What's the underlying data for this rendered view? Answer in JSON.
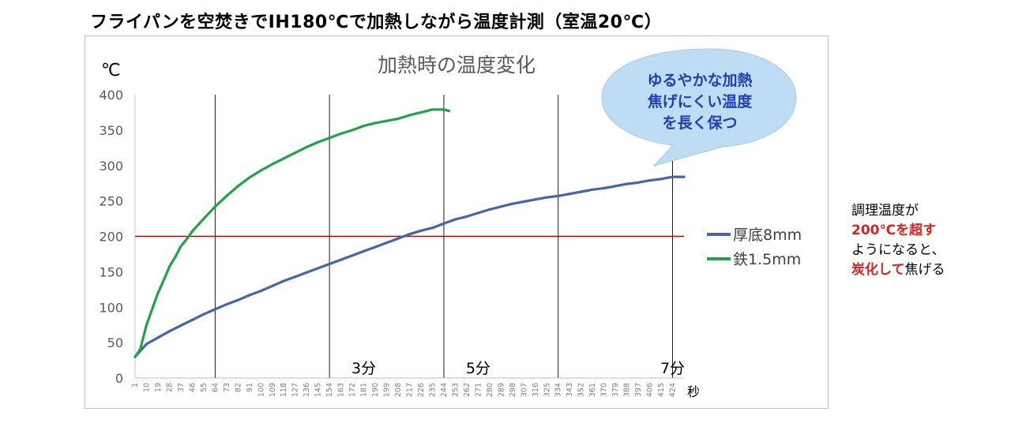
{
  "heading": "フライパンを空焚きでIH180℃で加熱しながら温度計測（室温20℃）",
  "chart_data": {
    "type": "line",
    "title": "加熱時の温度変化",
    "ylabel": "℃",
    "xlabel": "秒",
    "ylim": [
      0,
      400
    ],
    "yticks": [
      0,
      50,
      100,
      150,
      200,
      250,
      300,
      350,
      400
    ],
    "xlim": [
      1,
      433
    ],
    "xticks": [
      1,
      10,
      19,
      28,
      37,
      46,
      55,
      64,
      73,
      82,
      91,
      100,
      109,
      118,
      127,
      136,
      145,
      154,
      163,
      172,
      181,
      190,
      199,
      208,
      217,
      226,
      235,
      244,
      253,
      262,
      271,
      280,
      289,
      298,
      307,
      316,
      325,
      334,
      343,
      352,
      361,
      370,
      379,
      388,
      397,
      406,
      415,
      424
    ],
    "vertical_lines": [
      64,
      154,
      244,
      334,
      424
    ],
    "minute_labels": [
      {
        "x": 181,
        "label": "3分"
      },
      {
        "x": 271,
        "label": "5分"
      },
      {
        "x": 424,
        "label": "7分"
      }
    ],
    "reference_line": {
      "y": 200,
      "color": "#c00000"
    },
    "grid": "vertical",
    "legend_position": "right",
    "series": [
      {
        "name": "厚底8mm",
        "color": "#4466aa",
        "x": [
          1,
          10,
          19,
          28,
          37,
          46,
          55,
          64,
          73,
          82,
          91,
          100,
          109,
          118,
          127,
          136,
          145,
          154,
          163,
          172,
          181,
          190,
          199,
          208,
          217,
          226,
          235,
          244,
          253,
          262,
          271,
          280,
          289,
          298,
          307,
          316,
          325,
          334,
          343,
          352,
          361,
          370,
          379,
          388,
          397,
          406,
          415,
          424,
          433
        ],
        "y": [
          30,
          48,
          57,
          66,
          74,
          82,
          90,
          97,
          104,
          110,
          117,
          123,
          130,
          137,
          143,
          149,
          155,
          161,
          167,
          173,
          179,
          185,
          191,
          197,
          203,
          208,
          212,
          218,
          224,
          228,
          233,
          238,
          242,
          246,
          249,
          252,
          255,
          257,
          260,
          263,
          266,
          268,
          271,
          274,
          276,
          279,
          281,
          284,
          284
        ]
      },
      {
        "name": "鉄1.5mm",
        "color": "#22a24a",
        "x": [
          1,
          5,
          10,
          15,
          19,
          24,
          28,
          33,
          37,
          42,
          46,
          55,
          64,
          73,
          82,
          91,
          100,
          109,
          118,
          127,
          136,
          145,
          154,
          163,
          172,
          181,
          190,
          199,
          208,
          217,
          226,
          235,
          244,
          248
        ],
        "y": [
          30,
          40,
          75,
          100,
          120,
          140,
          157,
          172,
          186,
          197,
          207,
          225,
          242,
          257,
          271,
          283,
          293,
          302,
          310,
          318,
          326,
          333,
          339,
          345,
          350,
          356,
          360,
          363,
          366,
          371,
          375,
          379,
          379,
          377
        ]
      }
    ],
    "callout": [
      "ゆるやかな加熱",
      "焦げにくい温度",
      "を長く保つ"
    ]
  },
  "note": {
    "line1": "調理温度が",
    "line2": "200℃を超す",
    "line3": "ようになると、",
    "line4_red": "炭化して",
    "line4_rest": "焦げる"
  }
}
